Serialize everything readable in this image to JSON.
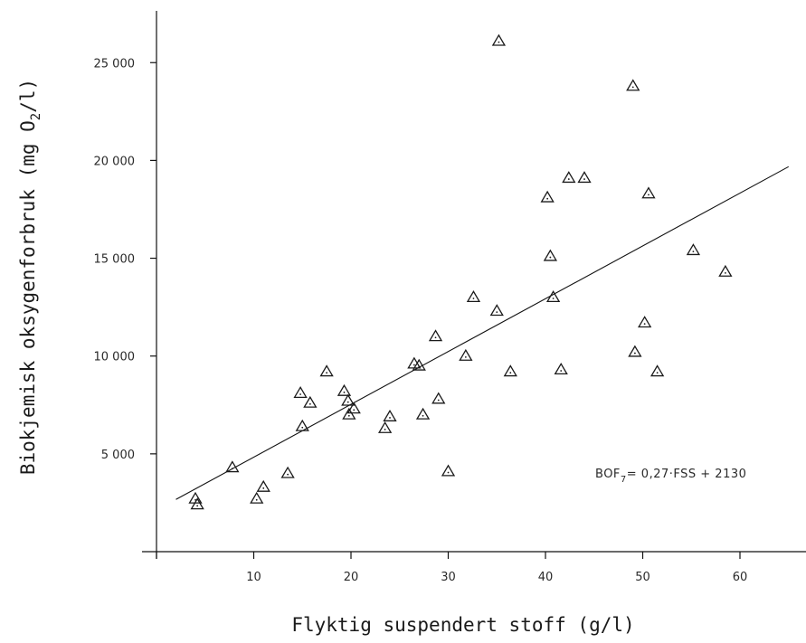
{
  "chart_data": {
    "type": "scatter",
    "title": "",
    "xlabel": "Flyktig suspendert stoff (g/l)",
    "ylabel": "Biokjemisk oksygenforbruk (mg O",
    "ylabel_subscript": "2",
    "ylabel_suffix": "/l)",
    "xlim": [
      0,
      66
    ],
    "ylim": [
      0,
      27500
    ],
    "x_ticks": [
      10,
      20,
      30,
      40,
      50,
      60
    ],
    "x_tick_labels": [
      "10",
      "20",
      "30",
      "40",
      "50",
      "60"
    ],
    "y_ticks": [
      5000,
      10000,
      15000,
      20000,
      25000
    ],
    "y_tick_labels": [
      "5 000",
      "10 000",
      "15 000",
      "20 000",
      "25 000"
    ],
    "grid": false,
    "annotation": {
      "prefix": "BOF",
      "subscript": "7",
      "suffix": "= 0,27·FSS + 2130"
    },
    "regression": {
      "slope": 270,
      "intercept": 2130,
      "x_range": [
        2,
        65
      ]
    },
    "points": [
      [
        4,
        2700
      ],
      [
        4.2,
        2400
      ],
      [
        7.8,
        4300
      ],
      [
        10.3,
        2700
      ],
      [
        11,
        3300
      ],
      [
        13.5,
        4000
      ],
      [
        14.8,
        8100
      ],
      [
        15,
        6400
      ],
      [
        15.8,
        7600
      ],
      [
        17.5,
        9200
      ],
      [
        19.3,
        8200
      ],
      [
        19.7,
        7700
      ],
      [
        19.8,
        7000
      ],
      [
        20.3,
        7300
      ],
      [
        23.5,
        6300
      ],
      [
        24,
        6900
      ],
      [
        26.5,
        9600
      ],
      [
        27,
        9500
      ],
      [
        27.4,
        7000
      ],
      [
        28.7,
        11000
      ],
      [
        29,
        7800
      ],
      [
        30,
        4100
      ],
      [
        31.8,
        10000
      ],
      [
        32.6,
        13000
      ],
      [
        35,
        12300
      ],
      [
        35.2,
        26100
      ],
      [
        36.4,
        9200
      ],
      [
        40.2,
        18100
      ],
      [
        40.5,
        15100
      ],
      [
        40.8,
        13000
      ],
      [
        41.6,
        9300
      ],
      [
        42.4,
        19100
      ],
      [
        44,
        19100
      ],
      [
        49,
        23800
      ],
      [
        49.2,
        10200
      ],
      [
        50.2,
        11700
      ],
      [
        50.6,
        18300
      ],
      [
        51.5,
        9200
      ],
      [
        55.2,
        15400
      ],
      [
        58.5,
        14300
      ]
    ]
  }
}
